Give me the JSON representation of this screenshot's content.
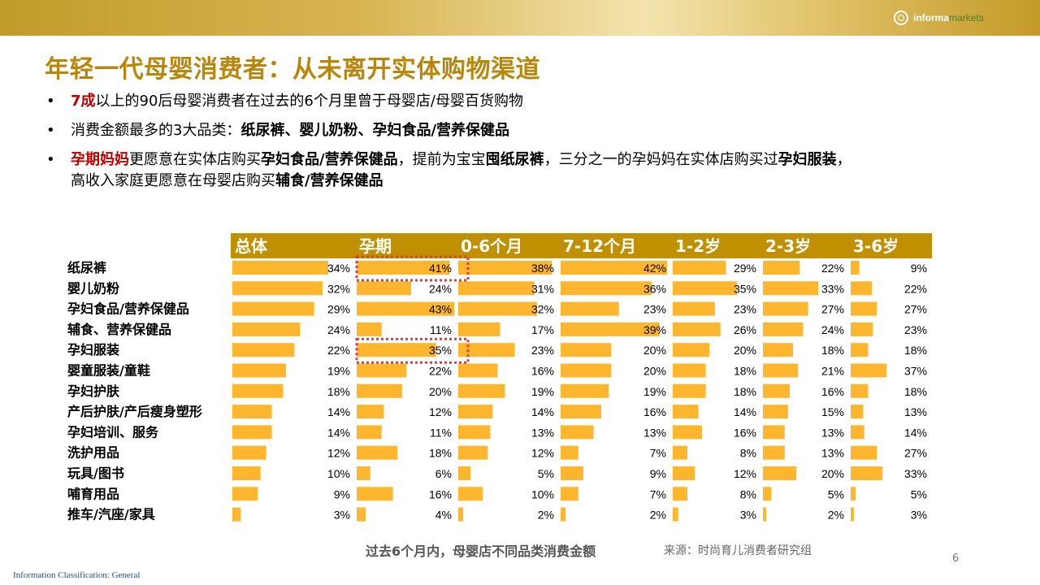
{
  "header": {
    "logo_brand": "informa",
    "logo_sub": "markets",
    "title": "年轻一代母婴消费者：从未离开实体购物渠道"
  },
  "bullets": {
    "b1_red": "7成",
    "b1_text": "以上的90后母婴消费者在过去的6个月里曾于母婴店/母婴百货购物",
    "b2_text": "消费金额最多的3大品类：",
    "b2_bold": "纸尿裤、婴儿奶粉、孕妇食品/营养保健品",
    "b3_red": "孕期妈妈",
    "b3_t1": "更愿意在实体店购买",
    "b3_b1": "孕妇食品/营养保健品",
    "b3_t2": "，提前为宝宝",
    "b3_b2": "囤纸尿裤",
    "b3_t3": "，三分之一的孕妈妈在实体店购买过",
    "b3_b3": "孕妇服装",
    "b3_t4": "，",
    "b3_t5": "高收入家庭更愿意在母婴店购买",
    "b3_b4": "辅食/营养保健品"
  },
  "chart_data": {
    "type": "bar",
    "orientation": "horizontal-small-multiples",
    "header_color": "#c09000",
    "bar_color": "#fdb62e",
    "highlight_color": "#e23b3b",
    "categories": [
      "纸尿裤",
      "婴儿奶粉",
      "孕妇食品/营养保健品",
      "辅食、营养保健品",
      "孕妇服装",
      "婴童服装/童鞋",
      "孕妇护肤",
      "产后护肤/产后瘦身塑形",
      "孕妇培训、服务",
      "洗护用品",
      "玩具/图书",
      "哺育用品",
      "推车/汽座/家具"
    ],
    "series": [
      {
        "name": "总体",
        "values": [
          34,
          32,
          29,
          24,
          22,
          19,
          18,
          14,
          14,
          12,
          10,
          9,
          3
        ]
      },
      {
        "name": "孕期",
        "values": [
          41,
          24,
          43,
          11,
          35,
          22,
          20,
          12,
          11,
          18,
          6,
          16,
          4
        ]
      },
      {
        "name": "0-6个月",
        "values": [
          38,
          31,
          32,
          17,
          23,
          16,
          19,
          14,
          13,
          12,
          5,
          10,
          2
        ]
      },
      {
        "name": "7-12个月",
        "values": [
          42,
          36,
          23,
          39,
          20,
          20,
          19,
          16,
          13,
          7,
          9,
          7,
          2
        ]
      },
      {
        "name": "1-2岁",
        "values": [
          29,
          35,
          23,
          26,
          20,
          18,
          18,
          14,
          16,
          8,
          12,
          8,
          3
        ]
      },
      {
        "name": "2-3岁",
        "values": [
          22,
          33,
          27,
          24,
          18,
          21,
          16,
          15,
          13,
          13,
          20,
          5,
          2
        ]
      },
      {
        "name": "3-6岁",
        "values": [
          9,
          22,
          27,
          23,
          18,
          37,
          18,
          13,
          14,
          27,
          33,
          5,
          3
        ]
      }
    ],
    "highlights": [
      {
        "series": "孕期",
        "category": "纸尿裤"
      },
      {
        "series": "孕期",
        "category": "孕妇服装"
      }
    ],
    "value_suffix": "%",
    "caption": "过去6个月内，母婴店不同品类消费金额",
    "source": "来源：时尚育儿消费者研究组"
  },
  "footer": {
    "page_number": "6",
    "classification": "Information Classification: General"
  }
}
